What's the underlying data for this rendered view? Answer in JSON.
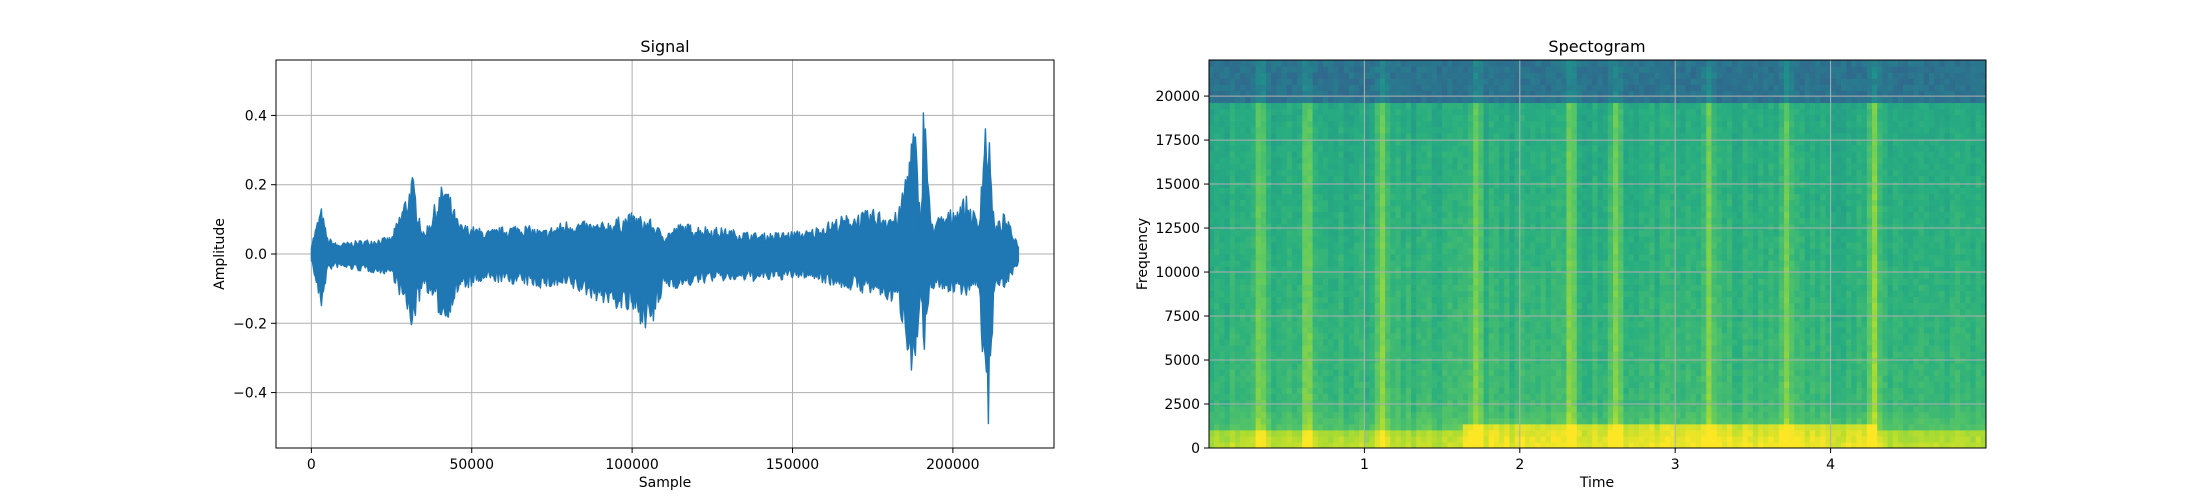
{
  "chart_data": [
    {
      "type": "line",
      "title": "Signal",
      "xlabel": "Sample",
      "ylabel": "Amplitude",
      "xlim": [
        -11025,
        231525
      ],
      "ylim": [
        -0.56,
        0.56
      ],
      "xticks": [
        0,
        50000,
        100000,
        150000,
        200000
      ],
      "xtick_labels": [
        "0",
        "50000",
        "100000",
        "150000",
        "200000"
      ],
      "yticks": [
        -0.4,
        -0.2,
        0.0,
        0.2,
        0.4
      ],
      "ytick_labels": [
        "−0.4",
        "−0.2",
        "0.0",
        "0.2",
        "0.4"
      ],
      "grid": true,
      "series_color": "#1f77b4",
      "n_samples": 220500,
      "envelope": {
        "x": [
          0,
          3000,
          5000,
          8000,
          15000,
          25000,
          31500,
          35000,
          41500,
          46000,
          55000,
          65000,
          72000,
          80000,
          90000,
          100000,
          106000,
          110000,
          115000,
          125000,
          140000,
          155000,
          165000,
          175000,
          183000,
          188000,
          190000,
          191000,
          193000,
          198000,
          204000,
          208000,
          210000,
          211000,
          213000,
          216000,
          220500
        ],
        "upper": [
          0.03,
          0.14,
          0.05,
          0.03,
          0.04,
          0.05,
          0.23,
          0.06,
          0.22,
          0.09,
          0.07,
          0.09,
          0.07,
          0.1,
          0.09,
          0.12,
          0.1,
          0.06,
          0.09,
          0.08,
          0.06,
          0.07,
          0.11,
          0.13,
          0.12,
          0.4,
          0.09,
          0.52,
          0.1,
          0.12,
          0.17,
          0.1,
          0.4,
          0.38,
          0.08,
          0.12,
          0.03
        ],
        "lower": [
          -0.02,
          -0.17,
          -0.05,
          -0.04,
          -0.05,
          -0.06,
          -0.22,
          -0.09,
          -0.21,
          -0.11,
          -0.08,
          -0.09,
          -0.1,
          -0.1,
          -0.14,
          -0.18,
          -0.23,
          -0.1,
          -0.1,
          -0.08,
          -0.08,
          -0.07,
          -0.1,
          -0.12,
          -0.15,
          -0.38,
          -0.12,
          -0.35,
          -0.1,
          -0.11,
          -0.12,
          -0.1,
          -0.43,
          -0.51,
          -0.09,
          -0.1,
          -0.03
        ]
      }
    },
    {
      "type": "heatmap",
      "title": "Spectogram",
      "xlabel": "Time",
      "ylabel": "Frequency",
      "xlim": [
        0,
        5.0
      ],
      "ylim": [
        0,
        22050
      ],
      "xticks": [
        1,
        2,
        3,
        4
      ],
      "xtick_labels": [
        "1",
        "2",
        "3",
        "4"
      ],
      "yticks": [
        0,
        2500,
        5000,
        7500,
        10000,
        12500,
        15000,
        17500,
        20000
      ],
      "ytick_labels": [
        "0",
        "2500",
        "5000",
        "7500",
        "10000",
        "12500",
        "15000",
        "17500",
        "20000"
      ],
      "grid": true,
      "colormap": "viridis",
      "colormap_stops": [
        "#3b528b",
        "#2c728e",
        "#21918c",
        "#28ae80",
        "#5ec962",
        "#addc30",
        "#fde725"
      ],
      "cutoff_frequency": 19500,
      "bright_columns": [
        0.33,
        0.63,
        1.12,
        1.72,
        2.33,
        2.62,
        3.22,
        3.72,
        4.28
      ],
      "low_band": {
        "start": 1.65,
        "end": 4.3,
        "top_frequency": 1500
      }
    }
  ]
}
